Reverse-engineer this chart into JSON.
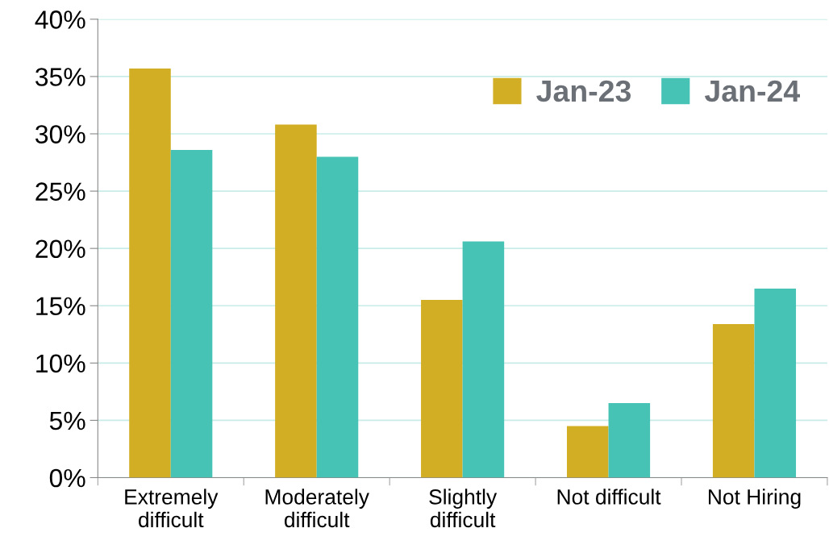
{
  "chart_data": {
    "type": "bar",
    "categories": [
      "Extremely\ndifficult",
      "Moderately\ndifficult",
      "Slightly\ndifficult",
      "Not difficult",
      "Not Hiring"
    ],
    "series": [
      {
        "name": "Jan-23",
        "color": "#d2ae24",
        "values": [
          35.7,
          30.8,
          15.5,
          4.5,
          13.4
        ]
      },
      {
        "name": "Jan-24",
        "color": "#47c3b6",
        "values": [
          28.6,
          28.0,
          20.6,
          6.5,
          16.5
        ]
      }
    ],
    "ylim": [
      0,
      40
    ],
    "yticks": [
      {
        "value": 0,
        "label": "0%"
      },
      {
        "value": 5,
        "label": "5%"
      },
      {
        "value": 10,
        "label": "10%"
      },
      {
        "value": 15,
        "label": "15%"
      },
      {
        "value": 20,
        "label": "20%"
      },
      {
        "value": 25,
        "label": "25%"
      },
      {
        "value": 30,
        "label": "30%"
      },
      {
        "value": 35,
        "label": "35%"
      },
      {
        "value": 40,
        "label": "40%"
      }
    ],
    "grid": "y",
    "legend": "top right"
  }
}
